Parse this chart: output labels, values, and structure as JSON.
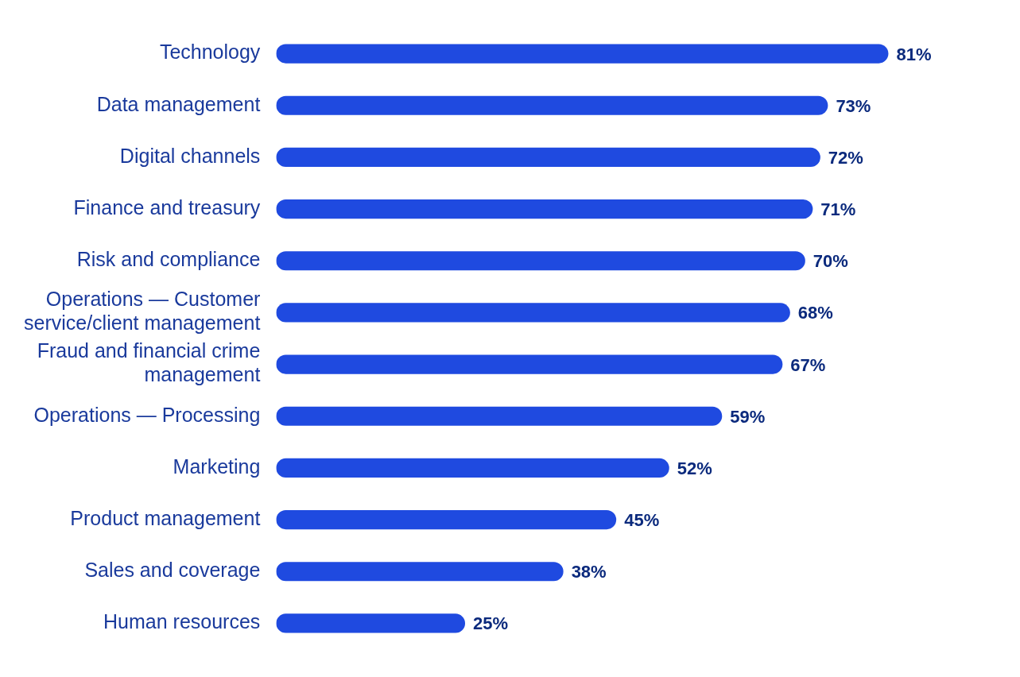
{
  "chart_data": {
    "type": "bar",
    "orientation": "horizontal",
    "categories": [
      "Technology",
      "Data management",
      "Digital channels",
      "Finance and treasury",
      "Risk and compliance",
      "Operations — Customer service/client management",
      "Fraud and financial crime management",
      "Operations — Processing",
      "Marketing",
      "Product management",
      "Sales and coverage",
      "Human resources"
    ],
    "values": [
      81,
      73,
      72,
      71,
      70,
      68,
      67,
      59,
      52,
      45,
      38,
      25
    ],
    "value_labels": [
      "81%",
      "73%",
      "72%",
      "71%",
      "70%",
      "68%",
      "67%",
      "59%",
      "52%",
      "45%",
      "38%",
      "25%"
    ],
    "color": "#1f4ae0",
    "grid": false,
    "legend": false
  }
}
